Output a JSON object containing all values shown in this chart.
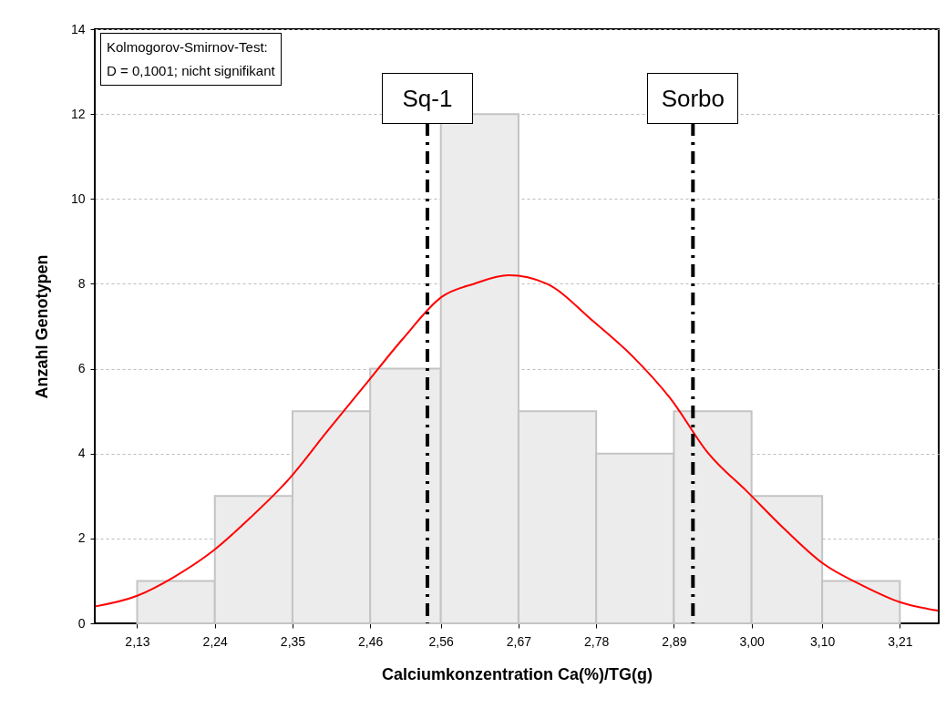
{
  "chart_data": {
    "type": "histogram",
    "xlabel": "Calciumkonzentration Ca(%)/TG(g)",
    "ylabel": "Anzahl Genotypen",
    "bins": [
      2.13,
      2.24,
      2.35,
      2.46,
      2.56,
      2.67,
      2.78,
      2.89,
      3.0,
      3.1,
      3.21
    ],
    "values": [
      1,
      3,
      5,
      6,
      12,
      5,
      4,
      5,
      3,
      1
    ],
    "color": "#ececec",
    "series": [
      {
        "type": "line",
        "color": "#ff0000",
        "x": [
          2.071,
          2.13,
          2.183,
          2.237,
          2.291,
          2.345,
          2.398,
          2.452,
          2.506,
          2.562,
          2.607,
          2.656,
          2.71,
          2.777,
          2.831,
          2.885,
          2.939,
          2.994,
          3.048,
          3.102,
          3.156,
          3.21,
          3.264
        ],
        "values": [
          0.4,
          0.65,
          1.1,
          1.7,
          2.5,
          3.4,
          4.5,
          5.6,
          6.7,
          7.7,
          8.0,
          8.2,
          8.0,
          7.1,
          6.3,
          5.3,
          4.0,
          3.1,
          2.2,
          1.4,
          0.9,
          0.5,
          0.3
        ]
      }
    ],
    "ref_lines": [
      {
        "axis": "x",
        "value": 2.541,
        "label": "Sq-1",
        "color": "#000000",
        "line_style": "dashdot"
      },
      {
        "axis": "x",
        "value": 2.917,
        "label": "Sorbo",
        "color": "#000000",
        "line_style": "dashdot"
      }
    ],
    "annotations": [
      "Kolmogorov-Smirnov-Test:\nD = 0,1001; nicht signifikant"
    ],
    "xlim": [
      2.07,
      3.265
    ],
    "xticks": [
      {
        "value": 2.13,
        "label": "2,13"
      },
      {
        "value": 2.24,
        "label": "2,24"
      },
      {
        "value": 2.35,
        "label": "2,35"
      },
      {
        "value": 2.46,
        "label": "2,46"
      },
      {
        "value": 2.56,
        "label": "2,56"
      },
      {
        "value": 2.67,
        "label": "2,67"
      },
      {
        "value": 2.78,
        "label": "2,78"
      },
      {
        "value": 2.89,
        "label": "2,89"
      },
      {
        "value": 3.0,
        "label": "3,00"
      },
      {
        "value": 3.1,
        "label": "3,10"
      },
      {
        "value": 3.21,
        "label": "3,21"
      }
    ],
    "ylim": [
      0,
      14
    ],
    "yticks": [
      0,
      2,
      4,
      6,
      8,
      10,
      12,
      14
    ],
    "grid": "y"
  }
}
